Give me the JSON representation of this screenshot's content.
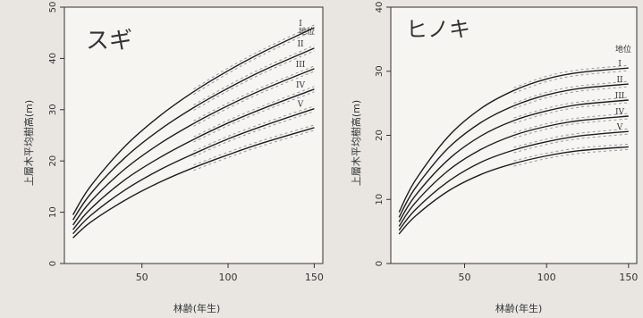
{
  "chart_data": [
    {
      "type": "line",
      "title": "スギ",
      "xlabel": "林齢(年生)",
      "ylabel": "上層木平均樹高(m)",
      "xlim": [
        5,
        155
      ],
      "ylim": [
        0,
        50
      ],
      "xticks": [
        50,
        100,
        150
      ],
      "yticks": [
        0,
        10,
        20,
        30,
        40,
        50
      ],
      "xtick_labels": [
        "50",
        "100",
        "150"
      ],
      "ytick_labels": [
        "0",
        "10",
        "20",
        "30",
        "40",
        "50"
      ],
      "legend_title": "地位",
      "legend_placement": "right-inside",
      "series": [
        {
          "name": "I",
          "x": [
            10,
            20,
            40,
            60,
            80,
            100,
            120,
            150
          ],
          "y": [
            9.5,
            15.0,
            22.8,
            28.7,
            33.5,
            37.6,
            41.2,
            46.0
          ]
        },
        {
          "name": "II",
          "x": [
            10,
            20,
            40,
            60,
            80,
            100,
            120,
            150
          ],
          "y": [
            8.5,
            13.5,
            20.6,
            26.0,
            30.4,
            34.2,
            37.6,
            42.0
          ]
        },
        {
          "name": "III",
          "x": [
            10,
            20,
            40,
            60,
            80,
            100,
            120,
            150
          ],
          "y": [
            7.5,
            12.0,
            18.4,
            23.3,
            27.3,
            30.8,
            33.9,
            38.0
          ]
        },
        {
          "name": "IV",
          "x": [
            10,
            20,
            40,
            60,
            80,
            100,
            120,
            150
          ],
          "y": [
            6.6,
            10.6,
            16.3,
            20.6,
            24.2,
            27.4,
            30.2,
            34.0
          ]
        },
        {
          "name": "V",
          "x": [
            10,
            20,
            40,
            60,
            80,
            100,
            120,
            150
          ],
          "y": [
            5.8,
            9.3,
            14.3,
            18.2,
            21.4,
            24.3,
            26.8,
            30.2
          ]
        },
        {
          "name": "",
          "x": [
            10,
            20,
            40,
            60,
            80,
            100,
            120,
            150
          ],
          "y": [
            5.0,
            8.0,
            12.3,
            15.8,
            18.7,
            21.2,
            23.5,
            26.5
          ]
        }
      ]
    },
    {
      "type": "line",
      "title": "ヒノキ",
      "xlabel": "林齢(年生)",
      "ylabel": "上層木平均樹高(m)",
      "xlim": [
        5,
        155
      ],
      "ylim": [
        0,
        40
      ],
      "xticks": [
        50,
        100,
        150
      ],
      "yticks": [
        0,
        10,
        20,
        30,
        40
      ],
      "xtick_labels": [
        "50",
        "100",
        "150"
      ],
      "ytick_labels": [
        "0",
        "10",
        "20",
        "30",
        "40"
      ],
      "legend_title": "地位",
      "legend_placement": "right-inside",
      "series": [
        {
          "name": "I",
          "x": [
            10,
            20,
            40,
            60,
            80,
            100,
            120,
            150
          ],
          "y": [
            8.0,
            13.0,
            19.8,
            24.2,
            27.0,
            28.8,
            29.8,
            30.5
          ]
        },
        {
          "name": "II",
          "x": [
            10,
            20,
            40,
            60,
            80,
            100,
            120,
            150
          ],
          "y": [
            7.2,
            11.8,
            18.0,
            22.0,
            24.6,
            26.3,
            27.3,
            28.0
          ]
        },
        {
          "name": "III",
          "x": [
            10,
            20,
            40,
            60,
            80,
            100,
            120,
            150
          ],
          "y": [
            6.5,
            10.6,
            16.2,
            19.9,
            22.3,
            23.8,
            24.8,
            25.5
          ]
        },
        {
          "name": "IV",
          "x": [
            10,
            20,
            40,
            60,
            80,
            100,
            120,
            150
          ],
          "y": [
            5.8,
            9.5,
            14.5,
            17.8,
            20.0,
            21.4,
            22.3,
            23.0
          ]
        },
        {
          "name": "V",
          "x": [
            10,
            20,
            40,
            60,
            80,
            100,
            120,
            150
          ],
          "y": [
            5.2,
            8.4,
            12.8,
            15.8,
            17.7,
            19.0,
            19.9,
            20.6
          ]
        },
        {
          "name": "",
          "x": [
            10,
            20,
            40,
            60,
            80,
            100,
            120,
            150
          ],
          "y": [
            4.6,
            7.4,
            11.3,
            13.9,
            15.6,
            16.8,
            17.6,
            18.2
          ]
        }
      ]
    }
  ],
  "colors": {
    "paper": "#e9e6e1",
    "plot_bg": "#f6f5f2",
    "line": "#1e1e1e",
    "dashed": "#9a9a9a",
    "axis": "#333333"
  }
}
